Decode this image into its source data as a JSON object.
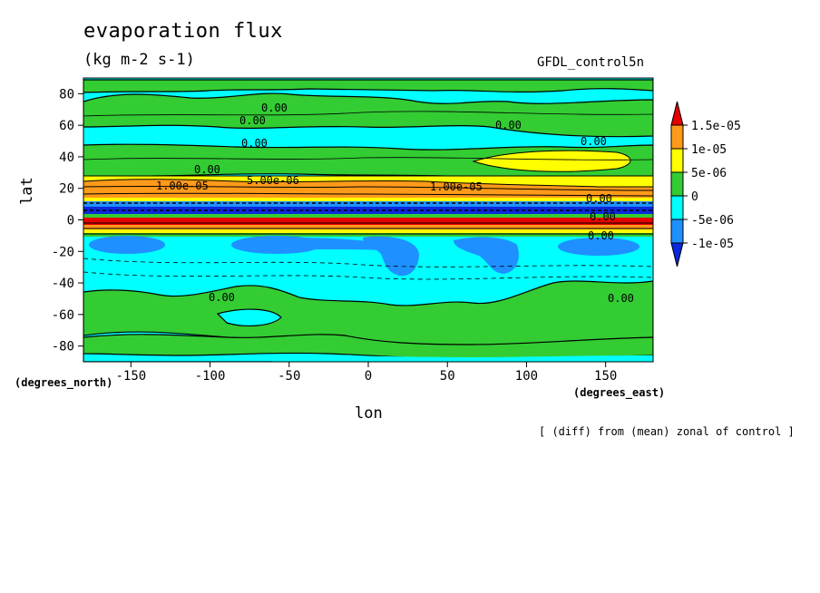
{
  "chart_data": {
    "type": "heatmap",
    "title": "evaporation flux",
    "subtitle": "(kg m-2 s-1)",
    "dataset": "GFDL_control5n",
    "xlabel": "lon",
    "ylabel": "lat",
    "x_units": "(degrees_east)",
    "y_units": "(degrees_north)",
    "note": "[ (diff) from (mean) zonal of control ]",
    "xlim": [
      -180,
      180
    ],
    "ylim": [
      -90,
      90
    ],
    "x_ticks": [
      -150,
      -100,
      -50,
      0,
      50,
      100,
      150
    ],
    "y_ticks": [
      -80,
      -60,
      -40,
      -20,
      0,
      20,
      40,
      60,
      80
    ],
    "x_tick_labels": [
      "-150",
      "-100",
      "-50",
      "0",
      "50",
      "100",
      "150"
    ],
    "y_tick_labels": [
      "-80",
      "-60",
      "-40",
      "-20",
      "0",
      "20",
      "40",
      "60",
      "80"
    ],
    "colorbar": {
      "levels": [
        "1.5e-05",
        "1e-05",
        "5e-06",
        "0",
        "-5e-06",
        "-1e-05"
      ],
      "colors": [
        "#e60000",
        "#ff9a1a",
        "#ffff00",
        "#33cc33",
        "#00ffff",
        "#1e90ff",
        "#0a28dc"
      ]
    },
    "contour_labels": [
      "0.00",
      "0.00",
      "0.00",
      "0.00",
      "0.00",
      "0.00",
      "5.00e-06",
      "1.00e-05",
      "1.00e-05",
      "0.00",
      "0.00",
      "0.00",
      "0.00",
      "0.00"
    ],
    "bands": [
      {
        "lat_min": 72,
        "lat_max": 90,
        "value_class": "-5e-06 to 0"
      },
      {
        "lat_min": 58,
        "lat_max": 72,
        "value_class": "0 to 5e-06"
      },
      {
        "lat_min": 44,
        "lat_max": 58,
        "value_class": "-5e-06 to 0"
      },
      {
        "lat_min": 30,
        "lat_max": 44,
        "value_class": "0 to 5e-06"
      },
      {
        "lat_min": 14,
        "lat_max": 26,
        "value_class": "1e-05 to 1.5e-05"
      },
      {
        "lat_min": 2,
        "lat_max": 12,
        "value_class": "< -1e-05"
      },
      {
        "lat_min": -3,
        "lat_max": 0,
        "value_class": "> 1.5e-05"
      },
      {
        "lat_min": -40,
        "lat_max": -8,
        "value_class": "-5e-06 to 0"
      },
      {
        "lat_min": -60,
        "lat_max": -40,
        "value_class": "0 to 5e-06"
      },
      {
        "lat_min": -90,
        "lat_max": -80,
        "value_class": "-5e-06 to 0"
      }
    ]
  }
}
